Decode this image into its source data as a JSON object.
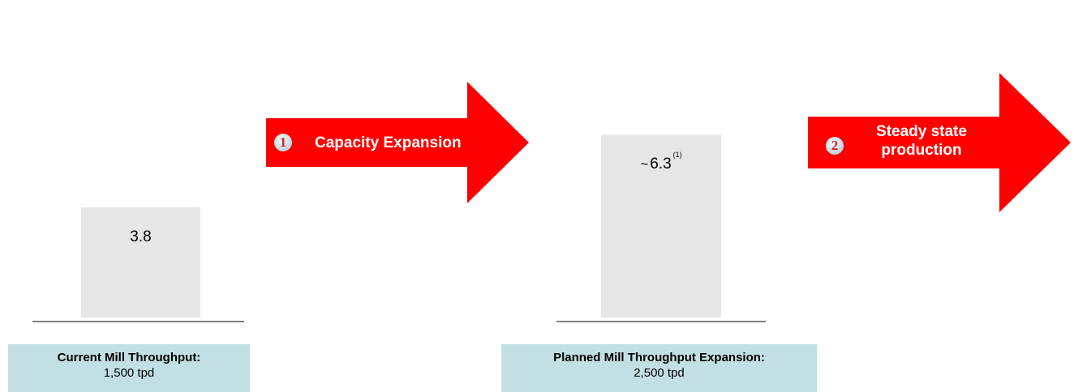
{
  "chart_data": {
    "type": "bar",
    "categories": [
      "Current Mill Throughput",
      "Planned Mill Throughput Expansion"
    ],
    "values": [
      3.8,
      6.3
    ],
    "bar_labels": [
      {
        "prefix": "",
        "value": "3.8",
        "note": ""
      },
      {
        "prefix": "~",
        "value": "6.3",
        "note": "(1)"
      }
    ],
    "bar_color": "#e6e6e6",
    "baseline_color": "#808080",
    "title": "",
    "xlabel": "",
    "ylabel": ""
  },
  "steps": [
    {
      "number": "1",
      "text": "Capacity Expansion",
      "color": "#ff0000"
    },
    {
      "number": "2",
      "text": "Steady state production",
      "line1": "Steady state",
      "line2": "production",
      "color": "#ff0000"
    }
  ],
  "info_boxes": [
    {
      "title": "Current Mill Throughput:",
      "value": "1,500 tpd",
      "color": "#c2e0e3"
    },
    {
      "title": "Planned  Mill Throughput Expansion:",
      "value": "2,500  tpd",
      "color": "#c2e0e3"
    }
  ]
}
